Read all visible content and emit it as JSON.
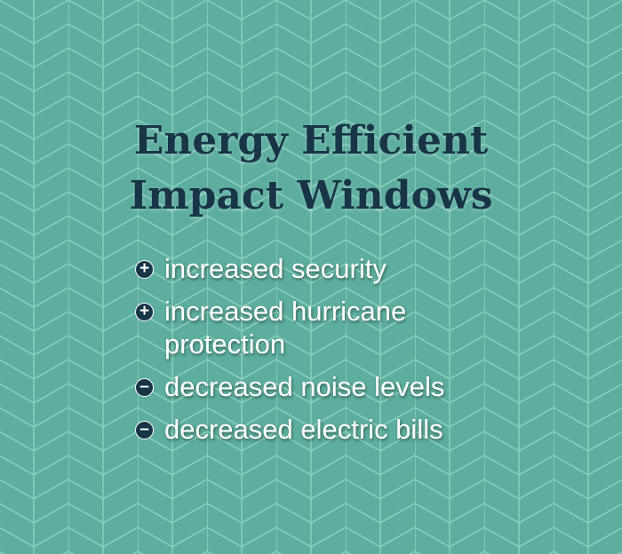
{
  "title": {
    "line1": "Energy Efficient",
    "line2": "Impact Windows"
  },
  "items": [
    {
      "icon": "plus-icon",
      "symbol": "+",
      "text": "increased security"
    },
    {
      "icon": "plus-icon",
      "symbol": "+",
      "text": "increased hurricane protection"
    },
    {
      "icon": "minus-icon",
      "symbol": "–",
      "text": "decreased noise levels"
    },
    {
      "icon": "minus-icon",
      "symbol": "–",
      "text": "decreased electric bills"
    }
  ],
  "colors": {
    "background": "#5dae9f",
    "pattern": "#8fd3c1",
    "title": "#183548",
    "text": "#ffffff"
  }
}
